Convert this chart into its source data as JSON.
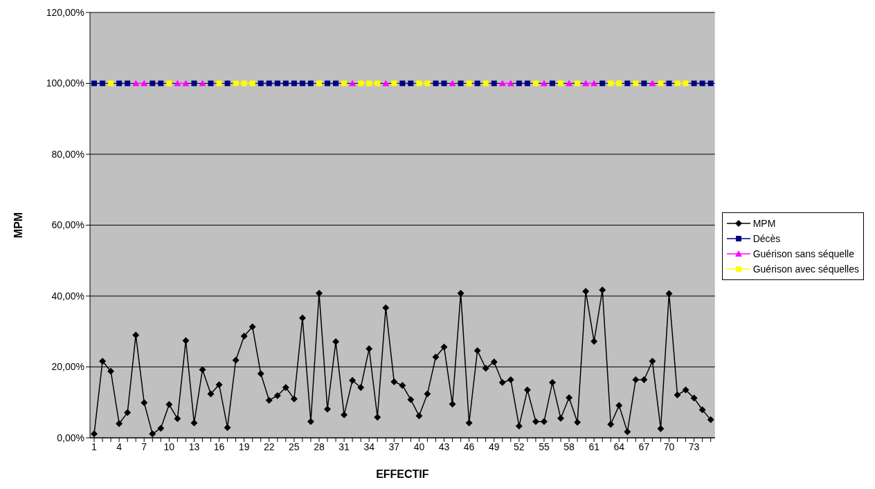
{
  "chart_data": {
    "type": "line",
    "xlabel": "EFFECTIF",
    "ylabel": "MPM",
    "categories": [
      "1",
      null,
      null,
      "4",
      null,
      null,
      "7",
      null,
      null,
      "10",
      null,
      null,
      "13",
      null,
      null,
      "16",
      null,
      null,
      "19",
      null,
      null,
      "22",
      null,
      null,
      "25",
      null,
      null,
      "28",
      null,
      null,
      "31",
      null,
      null,
      "34",
      null,
      null,
      "37",
      null,
      null,
      "40",
      null,
      null,
      "43",
      null,
      null,
      "46",
      null,
      null,
      "49",
      null,
      null,
      "52",
      null,
      null,
      "55",
      null,
      null,
      "58",
      null,
      null,
      "61",
      null,
      null,
      "64",
      null,
      null,
      "67",
      null,
      null,
      "70",
      null,
      null,
      "73",
      null,
      null
    ],
    "series": [
      {
        "name": "MPM",
        "color": "#000000",
        "marker": "diamond",
        "values": [
          1.1,
          21.6,
          18.8,
          4.0,
          7.1,
          29.0,
          9.9,
          1.1,
          2.7,
          9.4,
          5.4,
          27.4,
          4.2,
          19.2,
          12.4,
          15.0,
          2.9,
          21.9,
          28.7,
          31.3,
          18.1,
          10.6,
          11.9,
          14.2,
          11.0,
          33.8,
          4.6,
          40.8,
          8.1,
          27.1,
          6.5,
          16.2,
          14.2,
          25.1,
          5.8,
          36.7,
          15.8,
          14.8,
          10.8,
          6.2,
          12.4,
          22.8,
          25.6,
          9.5,
          40.8,
          4.2,
          24.6,
          19.6,
          21.4,
          15.6,
          16.4,
          3.3,
          13.5,
          4.6,
          4.6,
          15.6,
          5.5,
          11.3,
          4.4,
          41.3,
          27.2,
          41.7,
          3.8,
          9.1,
          1.7,
          16.4,
          16.4,
          21.6,
          2.6,
          40.7,
          12.1,
          13.5,
          11.2,
          7.9,
          5.1
        ]
      },
      {
        "name": "Décès",
        "color": "#000080",
        "marker": "square",
        "values": [
          100,
          100,
          null,
          100,
          100,
          null,
          null,
          100,
          100,
          null,
          null,
          null,
          100,
          null,
          100,
          null,
          100,
          null,
          null,
          null,
          100,
          100,
          100,
          100,
          100,
          100,
          100,
          null,
          100,
          100,
          null,
          null,
          null,
          null,
          null,
          null,
          null,
          100,
          100,
          null,
          null,
          100,
          100,
          null,
          100,
          null,
          100,
          null,
          100,
          null,
          null,
          100,
          100,
          null,
          null,
          100,
          null,
          null,
          null,
          null,
          null,
          100,
          null,
          null,
          100,
          null,
          100,
          null,
          null,
          100,
          null,
          null,
          100,
          100,
          100
        ]
      },
      {
        "name": "Guérison sans séquelle",
        "color": "#ff00ff",
        "marker": "triangle",
        "values": [
          null,
          null,
          null,
          null,
          null,
          100,
          100,
          null,
          null,
          null,
          100,
          100,
          null,
          100,
          null,
          null,
          null,
          null,
          null,
          null,
          null,
          null,
          null,
          null,
          null,
          null,
          null,
          null,
          null,
          null,
          null,
          100,
          null,
          null,
          null,
          100,
          null,
          null,
          null,
          null,
          null,
          null,
          null,
          100,
          null,
          null,
          null,
          null,
          null,
          100,
          100,
          null,
          null,
          null,
          100,
          null,
          null,
          100,
          null,
          100,
          100,
          null,
          null,
          null,
          null,
          null,
          null,
          100,
          null,
          null,
          null,
          null,
          null,
          null,
          null
        ]
      },
      {
        "name": "Guérison avec séquelles",
        "color": "#ffff00",
        "marker": "square",
        "values": [
          null,
          null,
          100,
          null,
          null,
          null,
          null,
          null,
          null,
          100,
          null,
          null,
          null,
          null,
          null,
          100,
          null,
          100,
          100,
          100,
          null,
          null,
          null,
          null,
          null,
          null,
          null,
          100,
          null,
          null,
          100,
          null,
          100,
          100,
          100,
          null,
          100,
          null,
          null,
          100,
          100,
          null,
          null,
          null,
          null,
          100,
          null,
          100,
          null,
          null,
          null,
          null,
          null,
          100,
          null,
          null,
          100,
          null,
          100,
          null,
          null,
          null,
          100,
          100,
          null,
          100,
          null,
          null,
          100,
          null,
          100,
          100,
          null,
          null,
          null
        ]
      }
    ],
    "ylim": [
      0,
      120
    ],
    "yticks": [
      {
        "value": 0,
        "label": "0,00%"
      },
      {
        "value": 20,
        "label": "20,00%"
      },
      {
        "value": 40,
        "label": "40,00%"
      },
      {
        "value": 60,
        "label": "60,00%"
      },
      {
        "value": 80,
        "label": "80,00%"
      },
      {
        "value": 100,
        "label": "100,00%"
      },
      {
        "value": 120,
        "label": "120,00%"
      }
    ],
    "grid": "y",
    "legend": "right"
  }
}
